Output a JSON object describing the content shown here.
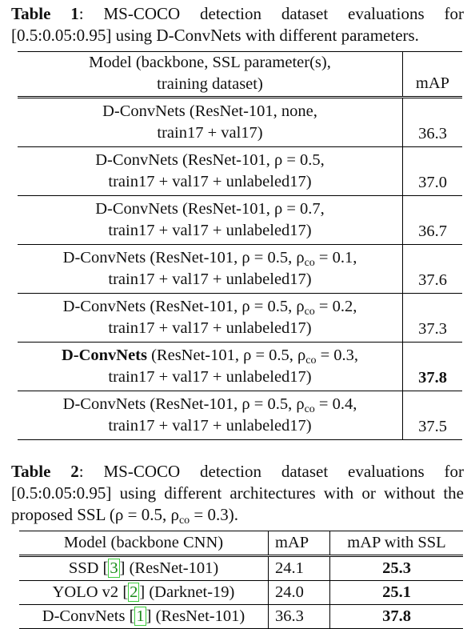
{
  "table1": {
    "label": "Table 1",
    "caption": ":  MS-COCO detection dataset evaluations for [0.5:0.05:0.95] using D-ConvNets with different parameters.",
    "header": {
      "model_line1": "Model (backbone, SSL parameter(s),",
      "model_line2": "training dataset)",
      "map": "mAP"
    },
    "rows": [
      {
        "name": "D-ConvNets",
        "line1_rest": " (ResNet-101, none,",
        "line2": "train17 + val17)",
        "map": "36.3"
      },
      {
        "name": "D-ConvNets",
        "line1_rest": " (ResNet-101, ρ = 0.5,",
        "line2": "train17 + val17 + unlabeled17)",
        "map": "37.0"
      },
      {
        "name": "D-ConvNets",
        "line1_rest": " (ResNet-101, ρ = 0.7,",
        "line2": "train17 + val17 + unlabeled17)",
        "map": "36.7"
      },
      {
        "name": "D-ConvNets",
        "line1_rest": " (ResNet-101, ρ = 0.5, ρ",
        "sub": "co",
        "line1_tail": " = 0.1,",
        "line2": "train17 + val17 + unlabeled17)",
        "map": "37.6"
      },
      {
        "name": "D-ConvNets",
        "line1_rest": " (ResNet-101, ρ = 0.5, ρ",
        "sub": "co",
        "line1_tail": " = 0.2,",
        "line2": "train17 + val17 + unlabeled17)",
        "map": "37.3"
      },
      {
        "name": "D-ConvNets",
        "line1_rest": " (ResNet-101, ρ = 0.5, ρ",
        "sub": "co",
        "line1_tail": " = 0.3,",
        "line2": "train17 + val17 + unlabeled17)",
        "map": "37.8"
      },
      {
        "name": "D-ConvNets",
        "line1_rest": " (ResNet-101, ρ = 0.5, ρ",
        "sub": "co",
        "line1_tail": " = 0.4,",
        "line2": "train17 + val17 + unlabeled17)",
        "map": "37.5"
      }
    ]
  },
  "table2": {
    "label": "Table 2",
    "caption": ":  MS-COCO detection dataset evaluations for [0.5:0.05:0.95] using different architectures with or without the proposed SSL (ρ = 0.5, ρ",
    "caption_sub": "co",
    "caption_tail": " = 0.3).",
    "header": {
      "model": "Model (backbone CNN)",
      "map": "mAP",
      "map_ssl": "mAP with SSL"
    },
    "rows": [
      {
        "pre": "SSD ",
        "cite": "3",
        "post": " (ResNet-101)",
        "map": "24.1",
        "map_ssl": "25.3"
      },
      {
        "pre": "YOLO v2 ",
        "cite": "2",
        "post": " (Darknet-19)",
        "map": "24.0",
        "map_ssl": "25.1"
      },
      {
        "pre": "D-ConvNets ",
        "cite": "1",
        "post": " (ResNet-101)",
        "map": "36.3",
        "map_ssl": "37.8"
      }
    ]
  }
}
